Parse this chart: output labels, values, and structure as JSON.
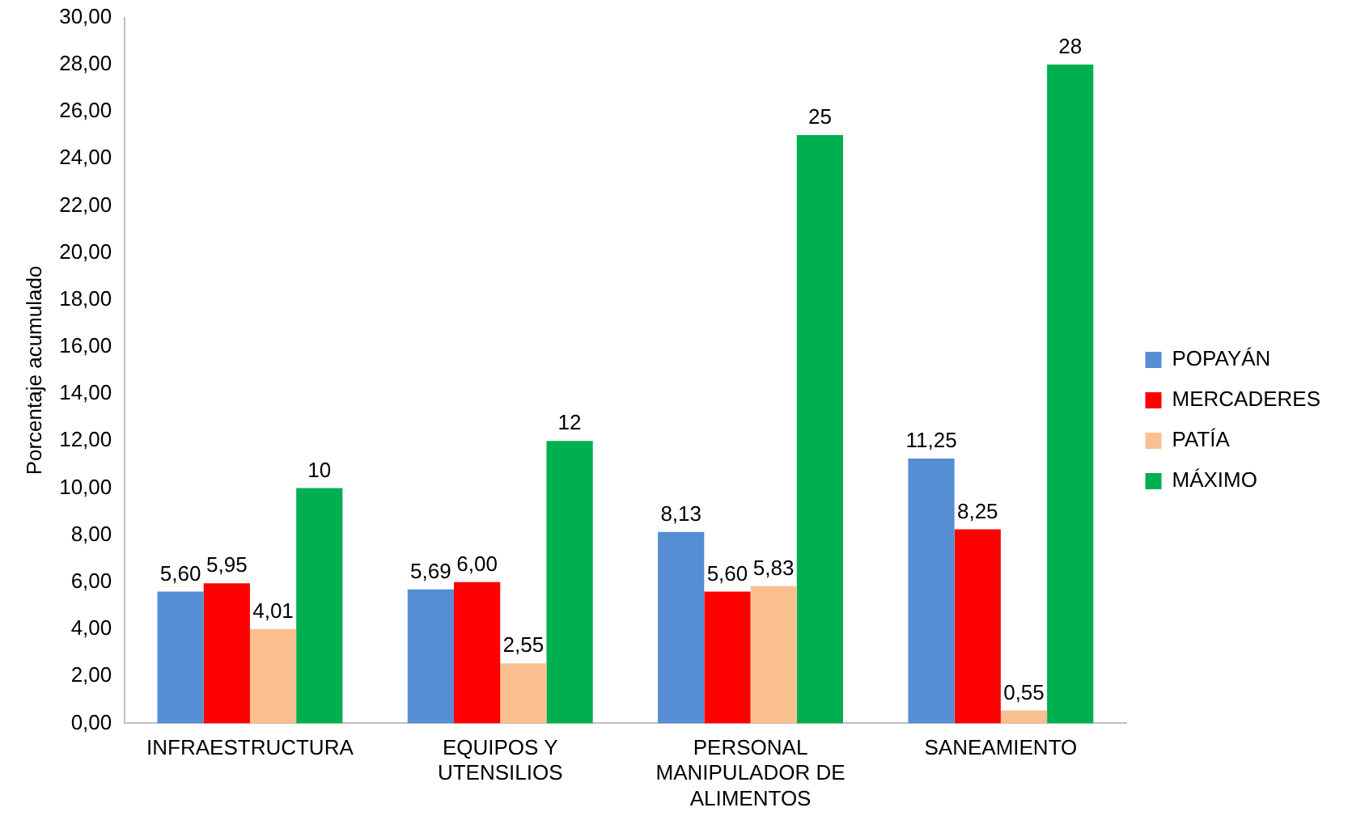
{
  "chart_data": {
    "type": "bar",
    "ylabel": "Porcentaje acumulado",
    "categories": [
      "INFRAESTRUCTURA",
      "EQUIPOS Y UTENSILIOS",
      "PERSONAL MANIPULADOR DE ALIMENTOS",
      "SANEAMIENTO"
    ],
    "series": [
      {
        "name": "POPAYÁN",
        "color": "#558ed5",
        "values": [
          5.6,
          5.69,
          8.13,
          11.25
        ],
        "value_labels": [
          "5,60",
          "5,69",
          "8,13",
          "11,25"
        ]
      },
      {
        "name": "MERCADERES",
        "color": "#ff0000",
        "values": [
          5.95,
          6.0,
          5.6,
          8.25
        ],
        "value_labels": [
          "5,95",
          "6,00",
          "5,60",
          "8,25"
        ]
      },
      {
        "name": "PATÍA",
        "color": "#fac090",
        "values": [
          4.01,
          2.55,
          5.83,
          0.55
        ],
        "value_labels": [
          "4,01",
          "2,55",
          "5,83",
          "0,55"
        ]
      },
      {
        "name": "MÁXIMO",
        "color": "#00b050",
        "values": [
          10,
          12,
          25,
          28
        ],
        "value_labels": [
          "10",
          "12",
          "25",
          "28"
        ]
      }
    ],
    "ylim": [
      0,
      30
    ],
    "yticks": [
      {
        "value": 0,
        "label": "0,00"
      },
      {
        "value": 2,
        "label": "2,00"
      },
      {
        "value": 4,
        "label": "4,00"
      },
      {
        "value": 6,
        "label": "6,00"
      },
      {
        "value": 8,
        "label": "8,00"
      },
      {
        "value": 10,
        "label": "10,00"
      },
      {
        "value": 12,
        "label": "12,00"
      },
      {
        "value": 14,
        "label": "14,00"
      },
      {
        "value": 16,
        "label": "16,00"
      },
      {
        "value": 18,
        "label": "18,00"
      },
      {
        "value": 20,
        "label": "20,00"
      },
      {
        "value": 22,
        "label": "22,00"
      },
      {
        "value": 24,
        "label": "24,00"
      },
      {
        "value": 26,
        "label": "26,00"
      },
      {
        "value": 28,
        "label": "28,00"
      },
      {
        "value": 30,
        "label": "30,00"
      }
    ],
    "grid": false,
    "legend": "right"
  }
}
